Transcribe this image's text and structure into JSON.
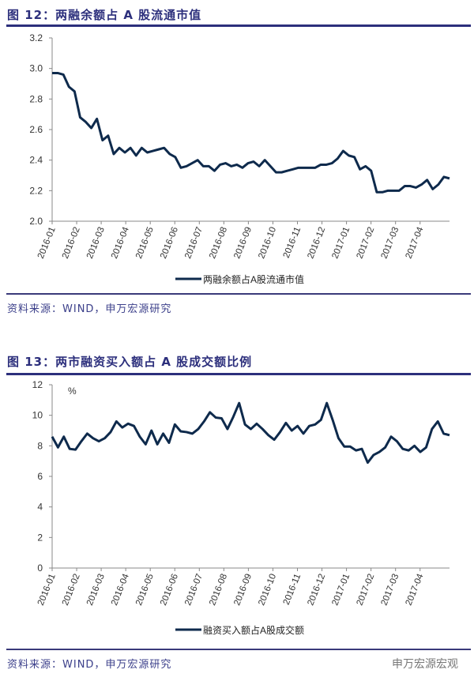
{
  "figures": [
    {
      "title": "图 12：两融余额占 A 股流通市值"
    },
    {
      "title": "图 13：两市融资买入额占 A 股成交额比例"
    }
  ],
  "source": "资料来源：WIND，申万宏源研究",
  "watermark": "申万宏源宏观",
  "line_color": "#0e2a4c",
  "title_color": "#2c2f7c",
  "chart_data": [
    {
      "type": "line",
      "title": "两融余额占A股流通市值",
      "xlabel": "",
      "ylabel": "",
      "ylim": [
        2.0,
        3.2
      ],
      "yticks": [
        "2.0",
        "2.2",
        "2.4",
        "2.6",
        "2.8",
        "3.0",
        "3.2"
      ],
      "xticks": [
        "2016-01",
        "2016-02",
        "2016-03",
        "2016-04",
        "2016-05",
        "2016-06",
        "2016-07",
        "2016-08",
        "2016-09",
        "2016-10",
        "2016-11",
        "2016-12",
        "2017-01",
        "2017-02",
        "2017-03",
        "2017-04"
      ],
      "legend": "top-bottom-center",
      "series": [
        {
          "name": "两融余额占A股流通市值",
          "values": [
            2.97,
            2.97,
            2.96,
            2.88,
            2.85,
            2.68,
            2.65,
            2.61,
            2.67,
            2.53,
            2.56,
            2.44,
            2.48,
            2.45,
            2.48,
            2.43,
            2.48,
            2.45,
            2.46,
            2.47,
            2.48,
            2.44,
            2.42,
            2.35,
            2.36,
            2.38,
            2.4,
            2.36,
            2.36,
            2.33,
            2.37,
            2.38,
            2.36,
            2.37,
            2.35,
            2.38,
            2.39,
            2.36,
            2.4,
            2.36,
            2.32,
            2.32,
            2.33,
            2.34,
            2.35,
            2.35,
            2.35,
            2.35,
            2.37,
            2.37,
            2.38,
            2.41,
            2.46,
            2.43,
            2.42,
            2.34,
            2.36,
            2.33,
            2.19,
            2.19,
            2.2,
            2.2,
            2.2,
            2.23,
            2.23,
            2.22,
            2.24,
            2.27,
            2.21,
            2.24,
            2.29,
            2.28
          ]
        }
      ]
    },
    {
      "type": "line",
      "title": "两市融资买入额占A股成交额比例",
      "xlabel": "",
      "ylabel": "%",
      "ylim": [
        0,
        12
      ],
      "yticks": [
        "0",
        "2",
        "4",
        "6",
        "8",
        "10",
        "12"
      ],
      "xticks": [
        "2016-01",
        "2016-02",
        "2016-03",
        "2016-04",
        "2016-05",
        "2016-06",
        "2016-07",
        "2016-08",
        "2016-09",
        "2016-10",
        "2016-11",
        "2016-12",
        "2017-01",
        "2017-02",
        "2017-03",
        "2017-04"
      ],
      "legend": "bottom-center",
      "series": [
        {
          "name": "融资买入额占A股成交额",
          "values": [
            8.6,
            7.9,
            8.6,
            7.8,
            7.75,
            8.3,
            8.8,
            8.5,
            8.3,
            8.5,
            8.9,
            9.6,
            9.2,
            9.45,
            9.3,
            8.6,
            8.1,
            9.0,
            8.1,
            8.8,
            8.2,
            9.4,
            8.95,
            8.9,
            8.8,
            9.1,
            9.6,
            10.2,
            9.85,
            9.8,
            9.1,
            9.9,
            10.8,
            9.4,
            9.1,
            9.45,
            9.1,
            8.7,
            8.4,
            8.9,
            9.5,
            9.0,
            9.3,
            8.8,
            9.3,
            9.4,
            9.7,
            10.8,
            9.7,
            8.5,
            7.95,
            7.95,
            7.7,
            7.8,
            6.9,
            7.4,
            7.6,
            7.9,
            8.6,
            8.3,
            7.8,
            7.7,
            8.0,
            7.6,
            7.9,
            9.1,
            9.6,
            8.8,
            8.7
          ]
        }
      ]
    }
  ]
}
